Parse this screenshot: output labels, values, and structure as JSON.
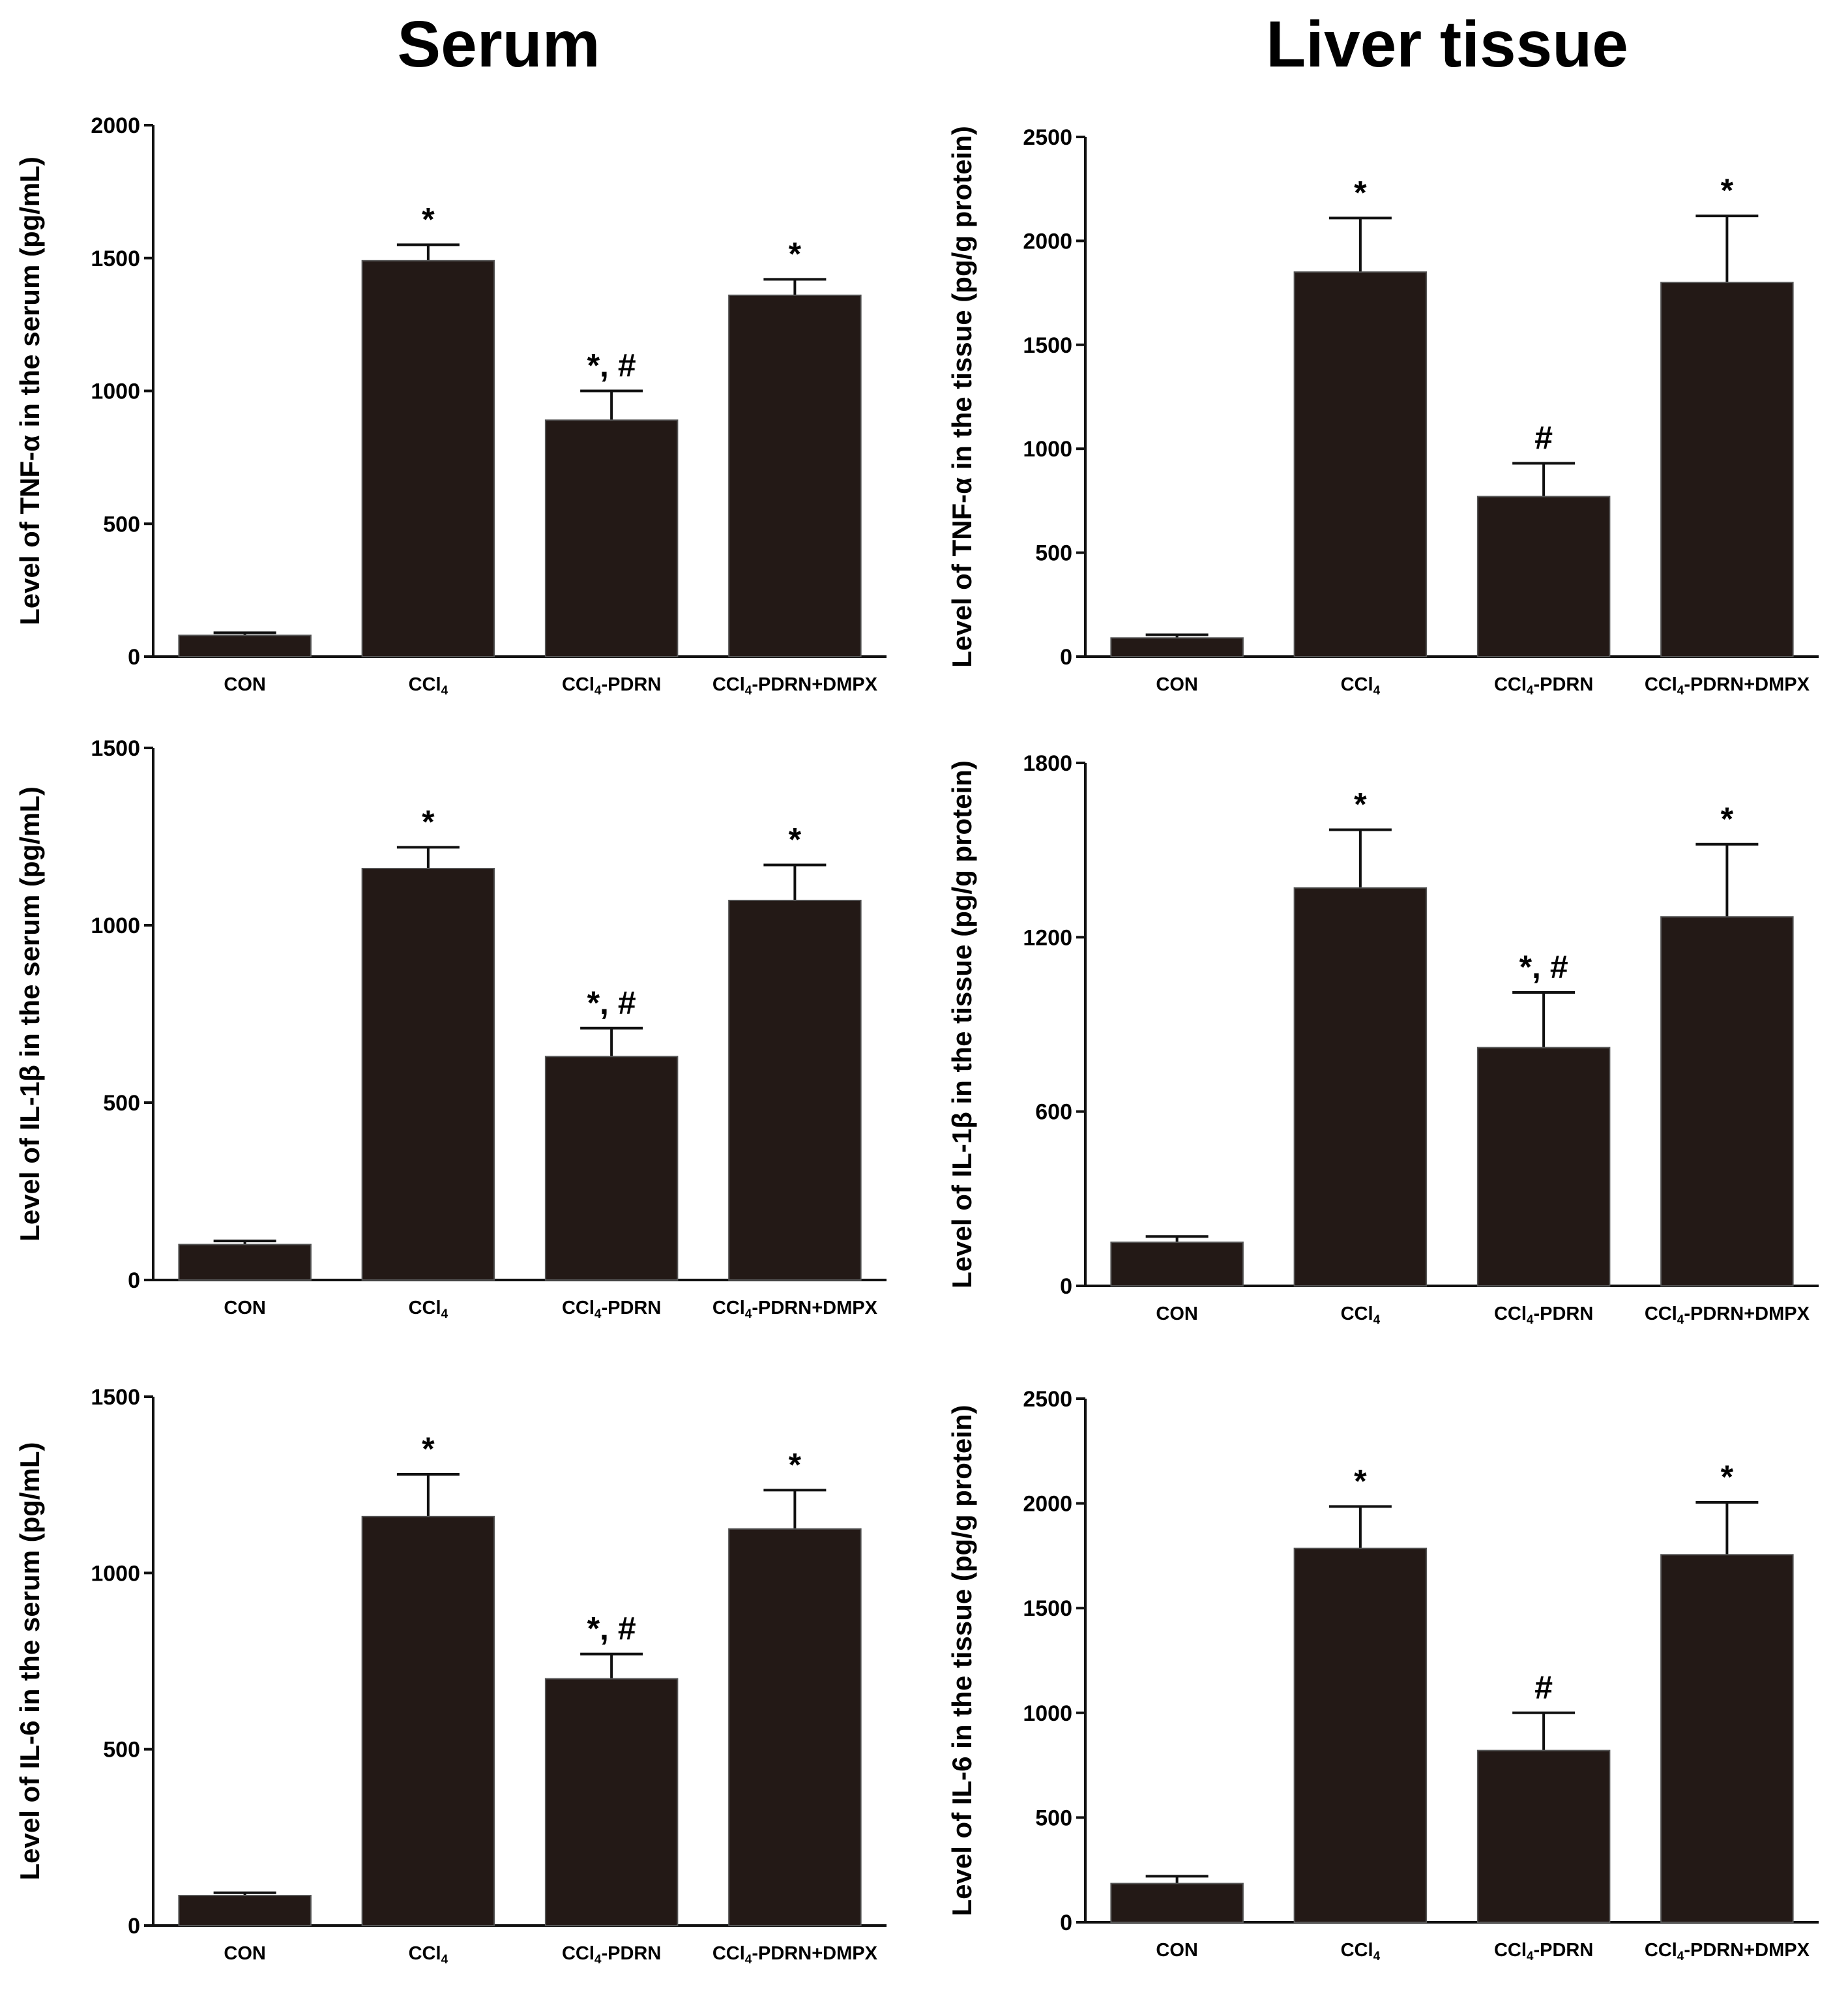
{
  "titles": {
    "left": "Serum",
    "right": "Liver tissue"
  },
  "colors": {
    "bar": "#231916",
    "axis": "#111111",
    "background": "#ffffff"
  },
  "chart_data": [
    {
      "type": "bar",
      "column": "Serum",
      "row": 0,
      "ylabel": "Level of TNF-α in the serum (pg/mL)",
      "ylim": [
        0,
        2000
      ],
      "yticks": [
        0,
        500,
        1000,
        1500,
        2000
      ],
      "categories": [
        "CON",
        "CCl4",
        "CCl4-PDRN",
        "CCl4-PDRN\n+DMPX"
      ],
      "values": [
        80,
        1490,
        890,
        1360
      ],
      "errors": [
        10,
        60,
        110,
        60
      ],
      "annotations": [
        "",
        "*",
        "*, #",
        "*"
      ]
    },
    {
      "type": "bar",
      "column": "Liver tissue",
      "row": 0,
      "ylabel": "Level of TNF-α in the tissue (pg/g protein)",
      "ylim": [
        0,
        2500
      ],
      "yticks": [
        0,
        500,
        1000,
        1500,
        2000,
        2500
      ],
      "categories": [
        "CON",
        "CCl4",
        "CCl4-PDRN",
        "CCl4-PDRN\n+DMPX"
      ],
      "values": [
        90,
        1850,
        770,
        1800
      ],
      "errors": [
        15,
        260,
        160,
        320
      ],
      "annotations": [
        "",
        "*",
        "#",
        "*"
      ]
    },
    {
      "type": "bar",
      "column": "Serum",
      "row": 1,
      "ylabel": "Level of IL-1β in the serum (pg/mL)",
      "ylim": [
        0,
        1500
      ],
      "yticks": [
        0,
        500,
        1000,
        1500
      ],
      "categories": [
        "CON",
        "CCl4",
        "CCl4-PDRN",
        "CCl4-PDRN\n+DMPX"
      ],
      "values": [
        100,
        1160,
        630,
        1070
      ],
      "errors": [
        10,
        60,
        80,
        100
      ],
      "annotations": [
        "",
        "*",
        "*, #",
        "*"
      ]
    },
    {
      "type": "bar",
      "column": "Liver tissue",
      "row": 1,
      "ylabel": "Level of IL-1β in the tissue (pg/g protein)",
      "ylim": [
        0,
        1800
      ],
      "yticks": [
        0,
        600,
        1200,
        1800
      ],
      "categories": [
        "CON",
        "CCl4",
        "CCl4-PDRN",
        "CCl4-PDRN\n+DMPX"
      ],
      "values": [
        150,
        1370,
        820,
        1270
      ],
      "errors": [
        20,
        200,
        190,
        250
      ],
      "annotations": [
        "",
        "*",
        "*, #",
        "*"
      ]
    },
    {
      "type": "bar",
      "column": "Serum",
      "row": 2,
      "ylabel": "Level of IL-6 in the serum (pg/mL)",
      "ylim": [
        0,
        1500
      ],
      "yticks": [
        0,
        500,
        1000,
        1500
      ],
      "categories": [
        "CON",
        "CCl4",
        "CCl4-PDRN",
        "CCl4-PDRN\n+DMPX"
      ],
      "values": [
        85,
        1160,
        700,
        1125
      ],
      "errors": [
        8,
        120,
        70,
        110
      ],
      "annotations": [
        "",
        "*",
        "*, #",
        "*"
      ]
    },
    {
      "type": "bar",
      "column": "Liver tissue",
      "row": 2,
      "ylabel": "Level of IL-6 in the tissue (pg/g protein)",
      "ylim": [
        0,
        2500
      ],
      "yticks": [
        0,
        500,
        1000,
        1500,
        2000,
        2500
      ],
      "categories": [
        "CON",
        "CCl4",
        "CCl4-PDRN",
        "CCl4-PDRN\n+DMPX"
      ],
      "values": [
        185,
        1785,
        820,
        1755
      ],
      "errors": [
        35,
        200,
        180,
        250
      ],
      "annotations": [
        "",
        "*",
        "#",
        "*"
      ]
    }
  ]
}
